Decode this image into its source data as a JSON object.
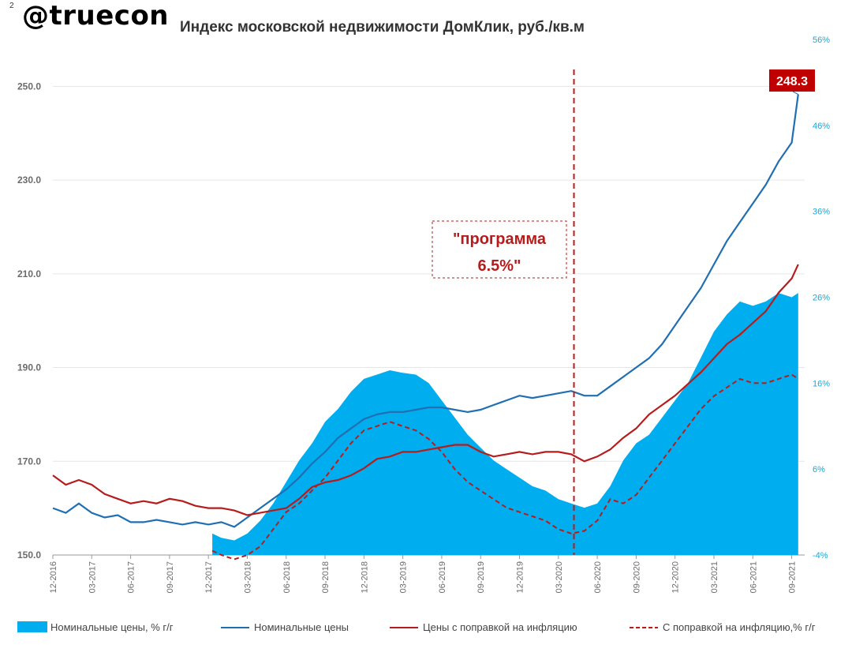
{
  "header": {
    "brand": "@truecon",
    "page_number": "2"
  },
  "colors": {
    "area": "#00aeef",
    "nominal": "#1f6fb2",
    "real": "#b71c1c",
    "axis_text_left": "#6b6b6b",
    "axis_text_right": "#1aa7d9",
    "label_box": "#c00000"
  },
  "chart_data": {
    "type": "line",
    "title": "Индекс московской недвижимости ДомКлик, руб./кв.м",
    "y_left": {
      "min": 150,
      "max": 260,
      "ticks": [
        "150.0",
        "170.0",
        "190.0",
        "210.0",
        "230.0",
        "250.0"
      ]
    },
    "y_right": {
      "min": -4,
      "max": 56,
      "ticks": [
        "-4%",
        "6%",
        "16%",
        "26%",
        "36%",
        "46%",
        "56%"
      ]
    },
    "x_ticks": [
      "12-2016",
      "03-2017",
      "06-2017",
      "09-2017",
      "12-2017",
      "03-2018",
      "06-2018",
      "09-2018",
      "12-2018",
      "03-2019",
      "06-2019",
      "09-2019",
      "12-2019",
      "03-2020",
      "06-2020",
      "09-2020",
      "12-2020",
      "03-2021",
      "06-2021",
      "09-2021"
    ],
    "x_range": [
      0,
      58
    ],
    "annotation": {
      "text_line1": "\"программа",
      "text_line2": "6.5%\"",
      "x": 40.2
    },
    "end_label": "248.3",
    "series": [
      {
        "name": "Номинальные цены, % г/г",
        "type": "area",
        "axis": "right",
        "x": [
          12.3,
          13,
          14,
          15,
          16,
          17,
          18,
          19,
          20,
          21,
          22,
          23,
          24,
          25,
          26,
          27,
          28,
          29,
          30,
          31,
          32,
          33,
          34,
          35,
          36,
          37,
          38,
          39,
          40,
          41,
          42,
          43,
          44,
          45,
          46,
          47,
          48,
          49,
          50,
          51,
          52,
          53,
          54,
          55,
          56,
          57,
          57.5
        ],
        "values": [
          -1.5,
          -2,
          -2.3,
          -1.5,
          0,
          2,
          4.5,
          7,
          9,
          11.5,
          13,
          15,
          16.5,
          17,
          17.5,
          17.2,
          17,
          16,
          14,
          12,
          10,
          8.5,
          7,
          6,
          5,
          4,
          3.5,
          2.5,
          2,
          1.5,
          2,
          4,
          7,
          9,
          10,
          12,
          14,
          16,
          19,
          22,
          24,
          25.5,
          25,
          25.5,
          26.5,
          26,
          26.5
        ]
      },
      {
        "name": "Номинальные цены",
        "type": "line",
        "axis": "left",
        "x": [
          0,
          1,
          2,
          3,
          4,
          5,
          6,
          7,
          8,
          9,
          10,
          11,
          12,
          13,
          14,
          15,
          16,
          17,
          18,
          19,
          20,
          21,
          22,
          23,
          24,
          25,
          26,
          27,
          28,
          29,
          30,
          31,
          32,
          33,
          34,
          35,
          36,
          37,
          38,
          39,
          40,
          41,
          42,
          43,
          44,
          45,
          46,
          47,
          48,
          49,
          50,
          51,
          52,
          53,
          54,
          55,
          56,
          57,
          57.5
        ],
        "values": [
          160,
          159,
          161,
          159,
          158,
          158.5,
          157,
          157,
          157.5,
          157,
          156.5,
          157,
          156.5,
          157,
          156,
          158,
          160,
          162,
          164,
          166.5,
          169.5,
          172,
          175,
          177,
          179,
          180,
          180.5,
          180.5,
          181,
          181.5,
          181.5,
          181,
          180.5,
          181,
          182,
          183,
          184,
          183.5,
          184,
          184.5,
          185,
          184,
          184,
          186,
          188,
          190,
          192,
          195,
          199,
          203,
          207,
          212,
          217,
          221,
          225,
          229,
          234,
          238,
          248.3
        ]
      },
      {
        "name": "Цены с поправкой на инфляцию",
        "type": "line",
        "axis": "left",
        "x": [
          0,
          1,
          2,
          3,
          4,
          5,
          6,
          7,
          8,
          9,
          10,
          11,
          12,
          13,
          14,
          15,
          16,
          17,
          18,
          19,
          20,
          21,
          22,
          23,
          24,
          25,
          26,
          27,
          28,
          29,
          30,
          31,
          32,
          33,
          34,
          35,
          36,
          37,
          38,
          39,
          40,
          41,
          42,
          43,
          44,
          45,
          46,
          47,
          48,
          49,
          50,
          51,
          52,
          53,
          54,
          55,
          56,
          57,
          57.5
        ],
        "values": [
          167,
          165,
          166,
          165,
          163,
          162,
          161,
          161.5,
          161,
          162,
          161.5,
          160.5,
          160,
          160,
          159.5,
          158.5,
          159,
          159.5,
          160,
          162,
          164.5,
          165.5,
          166,
          167,
          168.5,
          170.5,
          171,
          172,
          172,
          172.5,
          173,
          173.5,
          173.5,
          172,
          171,
          171.5,
          172,
          171.5,
          172,
          172,
          171.5,
          170,
          171,
          172.5,
          175,
          177,
          180,
          182,
          184,
          186.5,
          189,
          192,
          195,
          197,
          199.5,
          202,
          206,
          209,
          212
        ]
      },
      {
        "name": "С поправкой на инфляцию,% г/г",
        "type": "dashed",
        "axis": "right",
        "x": [
          12.3,
          13,
          14,
          15,
          16,
          17,
          18,
          19,
          20,
          21,
          22,
          23,
          24,
          25,
          26,
          27,
          28,
          29,
          30,
          31,
          32,
          33,
          34,
          35,
          36,
          37,
          38,
          39,
          40,
          41,
          42,
          43,
          44,
          45,
          46,
          47,
          48,
          49,
          50,
          51,
          52,
          53,
          54,
          55,
          56,
          57,
          57.5
        ],
        "values": [
          -3.5,
          -4,
          -4.5,
          -4,
          -3,
          -1,
          1,
          2,
          3.5,
          5,
          7,
          9,
          10.5,
          11,
          11.5,
          11,
          10.5,
          9.5,
          8,
          6,
          4.5,
          3.5,
          2.5,
          1.5,
          1,
          0.5,
          0,
          -1,
          -1.5,
          -1.2,
          0,
          2.5,
          2,
          3,
          5,
          7,
          9,
          11,
          13,
          14.5,
          15.5,
          16.5,
          16,
          16,
          16.5,
          17,
          16.5
        ]
      }
    ],
    "legend": {
      "position": "bottom",
      "items": [
        "Номинальные цены, % г/г",
        "Номинальные цены",
        "Цены с поправкой на инфляцию",
        "С поправкой на инфляцию,% г/г"
      ]
    }
  }
}
